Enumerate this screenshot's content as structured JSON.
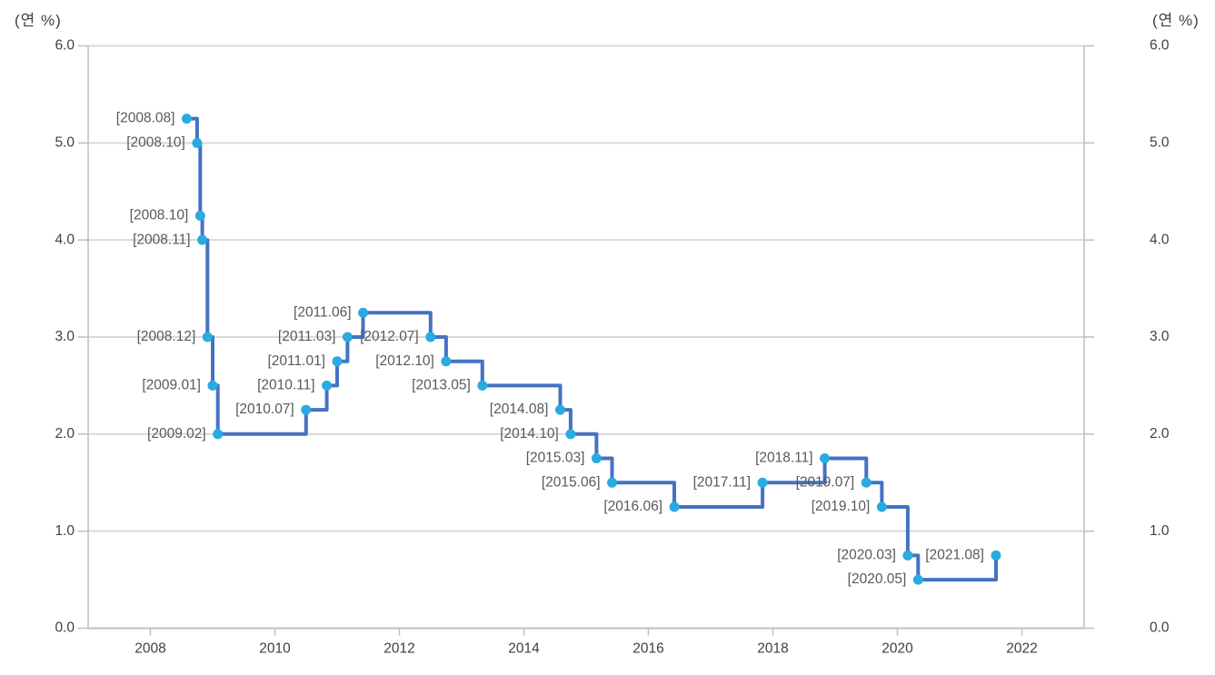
{
  "unit_label_left": "(연 %)",
  "unit_label_right": "(연 %)",
  "chart_data": {
    "type": "line",
    "subtype": "step-after",
    "title": "",
    "legend": "none",
    "grid": "horizontal-only",
    "unit_label": "(연 %)",
    "x_axis": {
      "min": 2007,
      "max": 2023,
      "tick_values": [
        2008,
        2010,
        2012,
        2014,
        2016,
        2018,
        2020,
        2022
      ],
      "tick_labels": [
        "2008",
        "2010",
        "2012",
        "2014",
        "2016",
        "2018",
        "2020",
        "2022"
      ]
    },
    "y_axis": {
      "min": 0,
      "max": 6,
      "tick_interval": 1.0,
      "tick_values": [
        0,
        1,
        2,
        3,
        4,
        5,
        6
      ],
      "tick_labels": [
        "0.0",
        "1.0",
        "2.0",
        "3.0",
        "4.0",
        "5.0",
        "6.0"
      ]
    },
    "points": [
      {
        "label": "[2008.08]",
        "x": 2008.5833,
        "y": 5.25
      },
      {
        "label": "[2008.10]",
        "x": 2008.75,
        "y": 5.0
      },
      {
        "label": "[2008.10]",
        "x": 2008.8,
        "y": 4.25
      },
      {
        "label": "[2008.11]",
        "x": 2008.8333,
        "y": 4.0
      },
      {
        "label": "[2008.12]",
        "x": 2008.9167,
        "y": 3.0
      },
      {
        "label": "[2009.01]",
        "x": 2009.0,
        "y": 2.5
      },
      {
        "label": "[2009.02]",
        "x": 2009.0833,
        "y": 2.0
      },
      {
        "label": "[2010.07]",
        "x": 2010.5,
        "y": 2.25
      },
      {
        "label": "[2010.11]",
        "x": 2010.8333,
        "y": 2.5
      },
      {
        "label": "[2011.01]",
        "x": 2011.0,
        "y": 2.75
      },
      {
        "label": "[2011.03]",
        "x": 2011.1667,
        "y": 3.0
      },
      {
        "label": "[2011.06]",
        "x": 2011.4167,
        "y": 3.25
      },
      {
        "label": "[2012.07]",
        "x": 2012.5,
        "y": 3.0
      },
      {
        "label": "[2012.10]",
        "x": 2012.75,
        "y": 2.75
      },
      {
        "label": "[2013.05]",
        "x": 2013.3333,
        "y": 2.5
      },
      {
        "label": "[2014.08]",
        "x": 2014.5833,
        "y": 2.25
      },
      {
        "label": "[2014.10]",
        "x": 2014.75,
        "y": 2.0
      },
      {
        "label": "[2015.03]",
        "x": 2015.1667,
        "y": 1.75
      },
      {
        "label": "[2015.06]",
        "x": 2015.4167,
        "y": 1.5
      },
      {
        "label": "[2016.06]",
        "x": 2016.4167,
        "y": 1.25
      },
      {
        "label": "[2017.11]",
        "x": 2017.8333,
        "y": 1.5
      },
      {
        "label": "[2018.11]",
        "x": 2018.8333,
        "y": 1.75
      },
      {
        "label": "[2019.07]",
        "x": 2019.5,
        "y": 1.5
      },
      {
        "label": "[2019.10]",
        "x": 2019.75,
        "y": 1.25
      },
      {
        "label": "[2020.03]",
        "x": 2020.1667,
        "y": 0.75
      },
      {
        "label": "[2020.05]",
        "x": 2020.3333,
        "y": 0.5
      },
      {
        "label": "[2021.08]",
        "x": 2021.5833,
        "y": 0.75
      }
    ],
    "colors": {
      "line": "#4472C4",
      "marker": "#29ABE2",
      "point_label": "#595959",
      "tick_label": "#404040",
      "grid_line": "#D9D9D9",
      "axis_line": "#BFBFBF"
    }
  }
}
